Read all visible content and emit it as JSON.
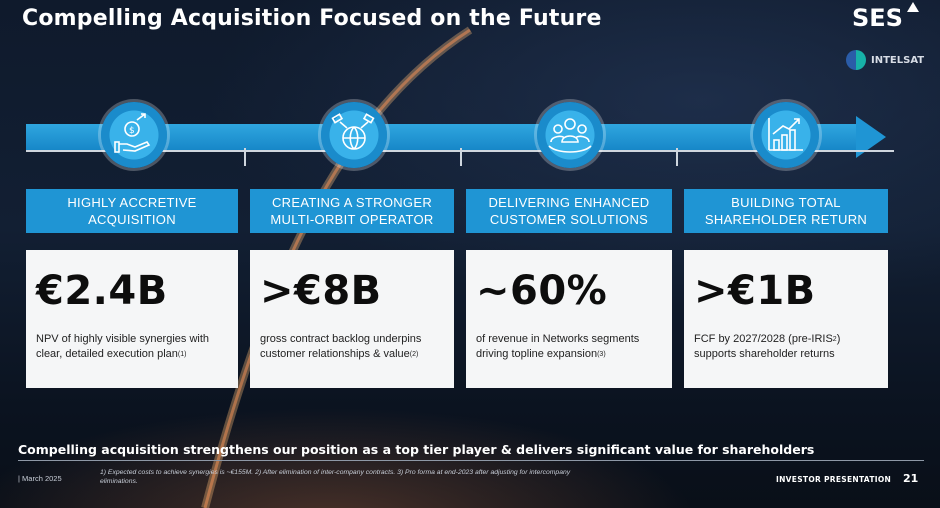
{
  "title": "Compelling Acquisition Focused on the Future",
  "logos": {
    "primary": "SES",
    "secondary": "INTELSAT"
  },
  "pillars": [
    {
      "icon": "dollar-hand-icon",
      "header": "HIGHLY ACCRETIVE\nACQUISITION",
      "value": "€2.4B",
      "desc": "NPV of highly visible synergies with clear, detailed execution plan",
      "note": "(1)"
    },
    {
      "icon": "globe-satellite-icon",
      "header": "CREATING A STRONGER\nMULTI-ORBIT OPERATOR",
      "value": ">€8B",
      "desc": "gross contract backlog underpins customer relationships & value",
      "note": "(2)"
    },
    {
      "icon": "customers-icon",
      "header": "DELIVERING ENHANCED\nCUSTOMER SOLUTIONS",
      "value": "~60%",
      "desc": "of revenue in Networks segments driving topline expansion",
      "note": "(3)"
    },
    {
      "icon": "growth-chart-icon",
      "header": "BUILDING TOTAL\nSHAREHOLDER RETURN",
      "value": ">€1B",
      "desc_a": "FCF by 2027/2028 (pre-IRIS",
      "desc_sup": "2",
      "desc_b": ") supports shareholder returns"
    }
  ],
  "statement": "Compelling acquisition strengthens our position as a top tier player & delivers significant value for shareholders",
  "footer": {
    "date": "| March 2025",
    "notes": "1) Expected costs to achieve synergies is ~€155M. 2) After elimination of inter-company contracts. 3) Pro forma at end-2023 after adjusting for intercompany eliminations.",
    "label": "INVESTOR PRESENTATION",
    "page": "21"
  },
  "colors": {
    "accent": "#1f95d4",
    "card": "#f5f6f7",
    "background": "#121f33"
  }
}
